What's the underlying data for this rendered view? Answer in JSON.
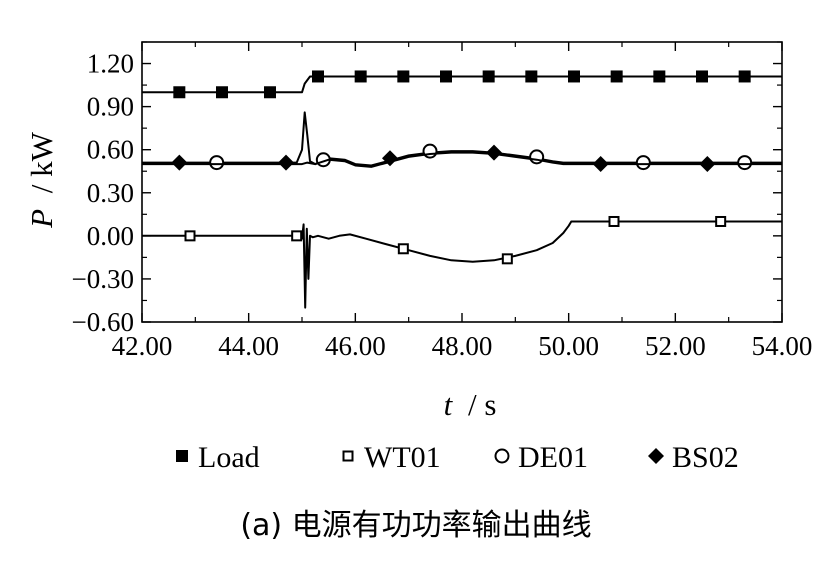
{
  "caption": "(a) 电源有功功率输出曲线",
  "chart_data": {
    "type": "line",
    "title": "",
    "xlabel_var": "t",
    "xlabel_unit": "/ s",
    "ylabel_var": "P",
    "ylabel_unit": "/ kW",
    "xlim": [
      42,
      54
    ],
    "ylim": [
      -0.6,
      1.35
    ],
    "xticks": [
      "42.00",
      "44.00",
      "46.00",
      "48.00",
      "50.00",
      "52.00",
      "54.00"
    ],
    "yticks": [
      "1.20",
      "0.90",
      "0.60",
      "0.30",
      "0.00",
      "−0.30",
      "−0.60"
    ],
    "ytick_values": [
      1.2,
      0.9,
      0.6,
      0.3,
      0.0,
      -0.3,
      -0.6
    ],
    "grid": false,
    "legend_position": "bottom",
    "series": [
      {
        "name": "Load",
        "marker": "filled-square",
        "color": "#000000",
        "x": [
          42.0,
          45.0,
          45.05,
          45.15,
          54.0
        ],
        "y": [
          1.0,
          1.0,
          1.06,
          1.11,
          1.11
        ],
        "marker_x": [
          42.7,
          43.5,
          44.4,
          45.3,
          46.1,
          46.9,
          47.7,
          48.5,
          49.3,
          50.1,
          50.9,
          51.7,
          52.5,
          53.3
        ],
        "marker_y": [
          1.0,
          1.0,
          1.0,
          1.11,
          1.11,
          1.11,
          1.11,
          1.11,
          1.11,
          1.11,
          1.11,
          1.11,
          1.11,
          1.11
        ]
      },
      {
        "name": "WT01",
        "marker": "hollow-square",
        "color": "#000000",
        "x": [
          42.0,
          44.95,
          45.0,
          45.03,
          45.06,
          45.09,
          45.12,
          45.15,
          45.2,
          45.3,
          45.5,
          45.7,
          45.9,
          46.2,
          46.6,
          47.0,
          47.4,
          47.8,
          48.2,
          48.6,
          49.0,
          49.4,
          49.7,
          49.9,
          50.0,
          50.05,
          54.0
        ],
        "y": [
          0.0,
          0.0,
          -0.02,
          0.08,
          -0.5,
          0.05,
          -0.3,
          0.0,
          -0.01,
          0.0,
          -0.02,
          0.0,
          0.01,
          -0.02,
          -0.06,
          -0.1,
          -0.14,
          -0.17,
          -0.18,
          -0.17,
          -0.14,
          -0.1,
          -0.05,
          0.02,
          0.07,
          0.1,
          0.1
        ],
        "marker_x": [
          42.9,
          44.9,
          46.9,
          48.85,
          50.85,
          52.85
        ],
        "marker_y": [
          0.0,
          0.0,
          -0.09,
          -0.16,
          0.1,
          0.1
        ]
      },
      {
        "name": "DE01",
        "marker": "hollow-circle",
        "color": "#000000",
        "x": [
          42.0,
          44.9,
          45.0,
          45.05,
          45.1,
          45.15,
          45.25,
          45.5,
          45.8,
          46.0,
          46.3,
          46.6,
          47.0,
          47.4,
          47.8,
          48.2,
          48.6,
          49.0,
          49.4,
          49.7,
          49.9,
          50.0,
          54.0
        ],
        "y": [
          0.51,
          0.51,
          0.6,
          0.86,
          0.7,
          0.52,
          0.5,
          0.54,
          0.53,
          0.5,
          0.49,
          0.52,
          0.56,
          0.58,
          0.59,
          0.59,
          0.58,
          0.56,
          0.54,
          0.52,
          0.51,
          0.51,
          0.51
        ],
        "marker_x": [
          43.4,
          45.4,
          47.4,
          49.4,
          51.4,
          53.3
        ],
        "marker_y": [
          0.51,
          0.53,
          0.59,
          0.55,
          0.51,
          0.51
        ]
      },
      {
        "name": "BS02",
        "marker": "filled-diamond",
        "color": "#000000",
        "x": [
          42.0,
          44.9,
          45.0,
          45.1,
          45.25,
          45.5,
          45.8,
          46.0,
          46.3,
          46.6,
          47.0,
          47.4,
          47.8,
          48.2,
          48.6,
          49.0,
          49.4,
          49.7,
          49.9,
          50.0,
          54.0
        ],
        "y": [
          0.5,
          0.5,
          0.5,
          0.51,
          0.5,
          0.53,
          0.52,
          0.49,
          0.48,
          0.51,
          0.55,
          0.57,
          0.58,
          0.58,
          0.57,
          0.55,
          0.53,
          0.51,
          0.5,
          0.5,
          0.5
        ],
        "marker_x": [
          42.7,
          44.7,
          46.65,
          48.6,
          50.6,
          52.6
        ],
        "marker_y": [
          0.51,
          0.51,
          0.54,
          0.58,
          0.5,
          0.5
        ]
      }
    ]
  }
}
